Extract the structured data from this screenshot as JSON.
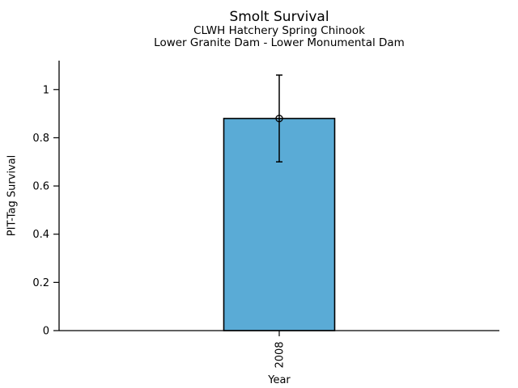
{
  "header": {
    "title": "Smolt Survival",
    "subtitle1": "CLWH Hatchery Spring Chinook",
    "subtitle2": "Lower Granite Dam - Lower Monumental Dam"
  },
  "chart_data": {
    "type": "bar",
    "title": "Smolt Survival",
    "subtitle1": "CLWH Hatchery Spring Chinook",
    "subtitle2": "Lower Granite Dam - Lower Monumental Dam",
    "xlabel": "Year",
    "ylabel": "PIT-Tag Survival",
    "categories": [
      "2008"
    ],
    "values": [
      0.88
    ],
    "error_low": [
      0.7
    ],
    "error_high": [
      1.06
    ],
    "yticks": [
      0,
      0.2,
      0.4,
      0.6,
      0.8,
      1
    ],
    "ylim": [
      0,
      1.12
    ],
    "bar_color": "#5aabd6",
    "edge_color": "#000000",
    "marker": "open-circle",
    "grid": false,
    "legend": "none"
  }
}
